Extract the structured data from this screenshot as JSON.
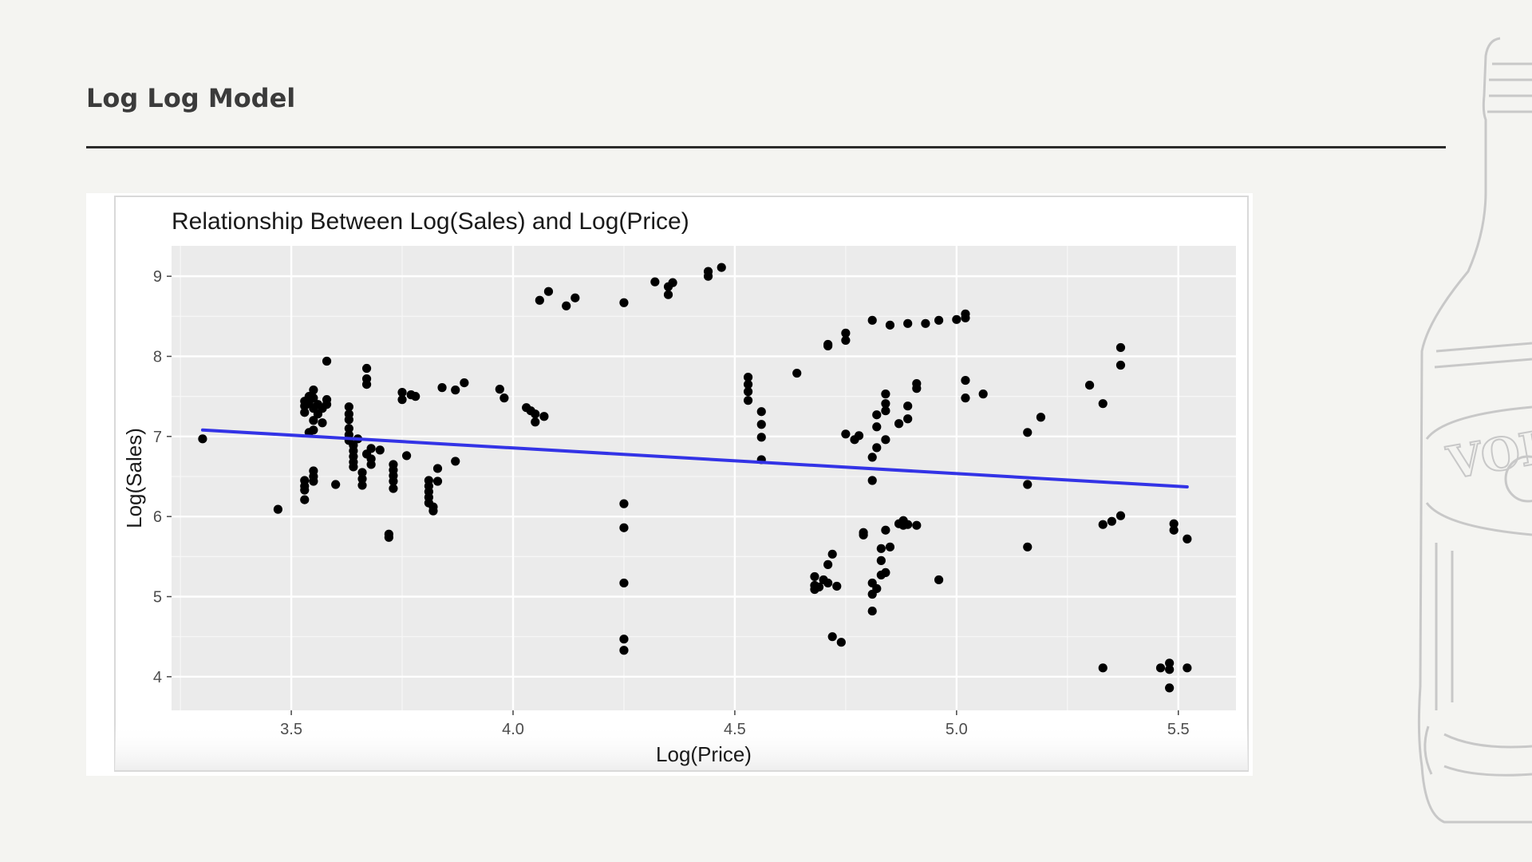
{
  "slide": {
    "title": "Log Log Model"
  },
  "colors": {
    "background": "#f4f4f1",
    "panel": "#ebebeb",
    "points": "#000000",
    "trend": "#3333e6"
  },
  "decoration": {
    "bottle_label": "VOI"
  },
  "chart_data": {
    "type": "scatter",
    "title": "Relationship Between Log(Sales) and Log(Price)",
    "xlabel": "Log(Price)",
    "ylabel": "Log(Sales)",
    "xlim": [
      3.23,
      5.63
    ],
    "ylim": [
      3.58,
      9.38
    ],
    "xticks": [
      3.5,
      4.0,
      4.5,
      5.0,
      5.5
    ],
    "xtick_labels": [
      "3.5",
      "4.0",
      "4.5",
      "5.0",
      "5.5"
    ],
    "yticks": [
      4,
      5,
      6,
      7,
      8,
      9
    ],
    "ytick_labels": [
      "4",
      "5",
      "6",
      "7",
      "8",
      "9"
    ],
    "grid": true,
    "legend": "none",
    "trend_line": {
      "x": [
        3.3,
        5.52
      ],
      "y": [
        7.08,
        6.37
      ]
    },
    "points": [
      [
        3.3,
        6.97
      ],
      [
        3.47,
        6.09
      ],
      [
        3.53,
        7.44
      ],
      [
        3.53,
        7.38
      ],
      [
        3.53,
        7.3
      ],
      [
        3.54,
        7.5
      ],
      [
        3.54,
        7.41
      ],
      [
        3.55,
        7.58
      ],
      [
        3.55,
        7.48
      ],
      [
        3.55,
        7.35
      ],
      [
        3.55,
        7.2
      ],
      [
        3.55,
        7.08
      ],
      [
        3.56,
        7.4
      ],
      [
        3.56,
        7.28
      ],
      [
        3.57,
        7.35
      ],
      [
        3.57,
        7.17
      ],
      [
        3.58,
        7.46
      ],
      [
        3.58,
        7.4
      ],
      [
        3.54,
        7.05
      ],
      [
        3.58,
        7.94
      ],
      [
        3.53,
        6.45
      ],
      [
        3.53,
        6.38
      ],
      [
        3.53,
        6.33
      ],
      [
        3.53,
        6.21
      ],
      [
        3.55,
        6.57
      ],
      [
        3.55,
        6.5
      ],
      [
        3.55,
        6.44
      ],
      [
        3.6,
        6.4
      ],
      [
        3.63,
        7.37
      ],
      [
        3.63,
        7.28
      ],
      [
        3.63,
        7.21
      ],
      [
        3.63,
        7.1
      ],
      [
        3.63,
        7.02
      ],
      [
        3.63,
        6.95
      ],
      [
        3.64,
        6.89
      ],
      [
        3.64,
        6.82
      ],
      [
        3.64,
        6.75
      ],
      [
        3.64,
        6.68
      ],
      [
        3.64,
        6.62
      ],
      [
        3.65,
        6.97
      ],
      [
        3.66,
        6.55
      ],
      [
        3.66,
        6.47
      ],
      [
        3.66,
        6.39
      ],
      [
        3.67,
        7.85
      ],
      [
        3.67,
        7.72
      ],
      [
        3.67,
        7.65
      ],
      [
        3.67,
        6.78
      ],
      [
        3.68,
        6.85
      ],
      [
        3.68,
        6.72
      ],
      [
        3.68,
        6.65
      ],
      [
        3.7,
        6.83
      ],
      [
        3.72,
        5.78
      ],
      [
        3.72,
        5.74
      ],
      [
        3.73,
        6.65
      ],
      [
        3.73,
        6.58
      ],
      [
        3.73,
        6.51
      ],
      [
        3.73,
        6.44
      ],
      [
        3.73,
        6.35
      ],
      [
        3.75,
        7.55
      ],
      [
        3.75,
        7.46
      ],
      [
        3.76,
        6.76
      ],
      [
        3.77,
        7.52
      ],
      [
        3.78,
        7.5
      ],
      [
        3.81,
        6.45
      ],
      [
        3.81,
        6.38
      ],
      [
        3.81,
        6.31
      ],
      [
        3.81,
        6.24
      ],
      [
        3.81,
        6.17
      ],
      [
        3.82,
        6.12
      ],
      [
        3.82,
        6.07
      ],
      [
        3.83,
        6.6
      ],
      [
        3.83,
        6.44
      ],
      [
        3.84,
        7.61
      ],
      [
        3.87,
        7.58
      ],
      [
        3.87,
        6.69
      ],
      [
        3.89,
        7.67
      ],
      [
        3.97,
        7.59
      ],
      [
        3.98,
        7.48
      ],
      [
        4.03,
        7.36
      ],
      [
        4.04,
        7.32
      ],
      [
        4.05,
        7.28
      ],
      [
        4.05,
        7.18
      ],
      [
        4.07,
        7.25
      ],
      [
        4.06,
        8.7
      ],
      [
        4.08,
        8.81
      ],
      [
        4.12,
        8.63
      ],
      [
        4.14,
        8.73
      ],
      [
        4.25,
        8.67
      ],
      [
        4.25,
        6.16
      ],
      [
        4.25,
        5.86
      ],
      [
        4.25,
        5.17
      ],
      [
        4.25,
        4.47
      ],
      [
        4.25,
        4.33
      ],
      [
        4.32,
        8.93
      ],
      [
        4.35,
        8.87
      ],
      [
        4.35,
        8.77
      ],
      [
        4.36,
        8.92
      ],
      [
        4.44,
        9.06
      ],
      [
        4.44,
        9.0
      ],
      [
        4.47,
        9.11
      ],
      [
        4.53,
        7.74
      ],
      [
        4.53,
        7.65
      ],
      [
        4.53,
        7.56
      ],
      [
        4.53,
        7.45
      ],
      [
        4.56,
        7.31
      ],
      [
        4.56,
        7.15
      ],
      [
        4.56,
        6.99
      ],
      [
        4.56,
        6.71
      ],
      [
        4.64,
        7.79
      ],
      [
        4.68,
        5.25
      ],
      [
        4.68,
        5.14
      ],
      [
        4.68,
        5.09
      ],
      [
        4.69,
        5.12
      ],
      [
        4.7,
        5.21
      ],
      [
        4.71,
        5.4
      ],
      [
        4.71,
        5.17
      ],
      [
        4.72,
        5.53
      ],
      [
        4.72,
        4.5
      ],
      [
        4.73,
        5.13
      ],
      [
        4.74,
        4.43
      ],
      [
        4.71,
        8.13
      ],
      [
        4.71,
        8.15
      ],
      [
        4.75,
        8.29
      ],
      [
        4.75,
        8.2
      ],
      [
        4.75,
        7.03
      ],
      [
        4.77,
        6.96
      ],
      [
        4.78,
        7.01
      ],
      [
        4.79,
        5.8
      ],
      [
        4.79,
        5.77
      ],
      [
        4.81,
        8.45
      ],
      [
        4.81,
        6.74
      ],
      [
        4.81,
        6.45
      ],
      [
        4.81,
        5.17
      ],
      [
        4.81,
        5.03
      ],
      [
        4.81,
        4.82
      ],
      [
        4.82,
        7.27
      ],
      [
        4.82,
        7.12
      ],
      [
        4.82,
        6.86
      ],
      [
        4.82,
        5.1
      ],
      [
        4.83,
        5.27
      ],
      [
        4.83,
        5.6
      ],
      [
        4.83,
        5.45
      ],
      [
        4.84,
        5.83
      ],
      [
        4.84,
        5.3
      ],
      [
        4.84,
        7.53
      ],
      [
        4.84,
        7.41
      ],
      [
        4.84,
        7.32
      ],
      [
        4.84,
        6.96
      ],
      [
        4.85,
        8.39
      ],
      [
        4.85,
        5.62
      ],
      [
        4.87,
        7.16
      ],
      [
        4.87,
        5.91
      ],
      [
        4.88,
        5.95
      ],
      [
        4.88,
        5.89
      ],
      [
        4.89,
        8.41
      ],
      [
        4.89,
        5.9
      ],
      [
        4.89,
        7.38
      ],
      [
        4.89,
        7.22
      ],
      [
        4.91,
        7.66
      ],
      [
        4.91,
        7.6
      ],
      [
        4.91,
        5.89
      ],
      [
        4.93,
        8.41
      ],
      [
        4.96,
        8.45
      ],
      [
        4.96,
        5.21
      ],
      [
        5.0,
        8.46
      ],
      [
        5.02,
        8.48
      ],
      [
        5.02,
        8.53
      ],
      [
        5.02,
        7.7
      ],
      [
        5.02,
        7.48
      ],
      [
        5.06,
        7.53
      ],
      [
        5.16,
        7.05
      ],
      [
        5.16,
        6.4
      ],
      [
        5.16,
        5.62
      ],
      [
        5.19,
        7.24
      ],
      [
        5.3,
        7.64
      ],
      [
        5.33,
        7.41
      ],
      [
        5.33,
        5.9
      ],
      [
        5.33,
        4.11
      ],
      [
        5.35,
        5.94
      ],
      [
        5.37,
        8.11
      ],
      [
        5.37,
        7.89
      ],
      [
        5.37,
        6.01
      ],
      [
        5.46,
        4.11
      ],
      [
        5.48,
        4.17
      ],
      [
        5.48,
        4.09
      ],
      [
        5.48,
        3.86
      ],
      [
        5.49,
        5.91
      ],
      [
        5.49,
        5.83
      ],
      [
        5.52,
        5.72
      ],
      [
        5.52,
        4.11
      ]
    ]
  }
}
